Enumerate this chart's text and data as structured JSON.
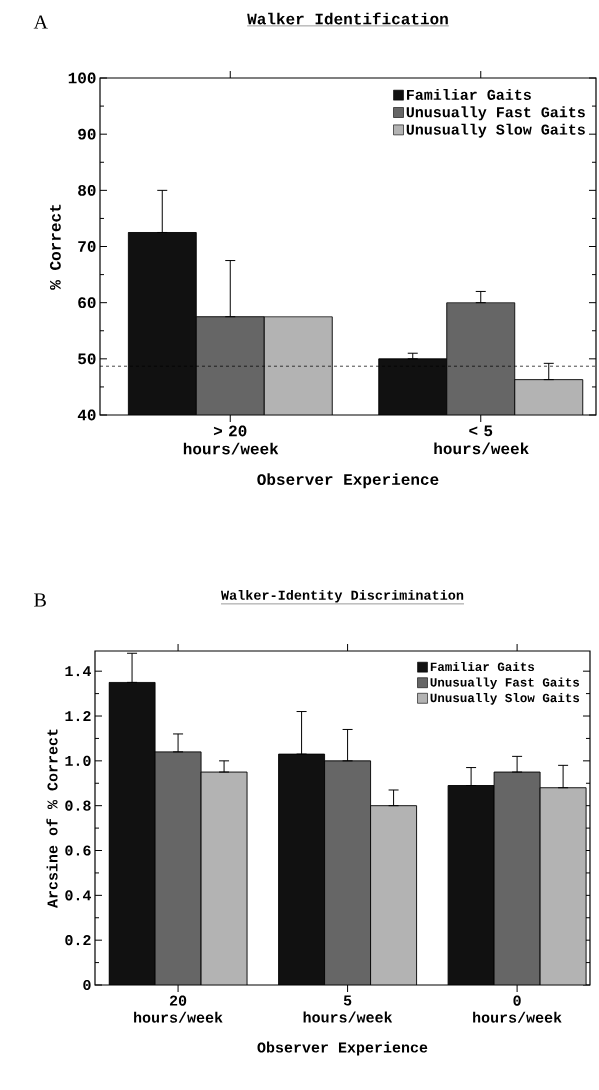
{
  "chart_data": [
    {
      "type": "bar",
      "title": "Walker Identification",
      "xlabel": "Observer Experience",
      "ylabel": "% Correct",
      "categories": [
        "> 20 hours/week",
        "< 5 hours/week"
      ],
      "series": [
        {
          "name": "Familiar Gaits",
          "color": "#111111",
          "values": [
            72.5,
            50
          ],
          "errors": [
            [
              72.5,
              80
            ],
            [
              50,
              51
            ]
          ]
        },
        {
          "name": "Unusually Fast Gaits",
          "color": "#666666",
          "values": [
            57.5,
            60
          ],
          "errors": [
            [
              57.5,
              67.5
            ],
            [
              60,
              62
            ]
          ]
        },
        {
          "name": "Unusually Slow Gaits",
          "color": "#b3b3b3",
          "values": [
            57.5,
            46.3
          ],
          "errors": [
            null,
            [
              46.3,
              49.2
            ]
          ]
        }
      ],
      "ylim": [
        40,
        100
      ],
      "yticks": [
        40,
        50,
        60,
        70,
        80,
        90,
        100
      ],
      "legend": "top right",
      "ref_lines": [
        {
          "axis": "y",
          "value": 48.7,
          "line_style": "dashed"
        }
      ],
      "annotations": [
        "A"
      ]
    },
    {
      "type": "bar",
      "title": "Walker-Identity Discrimination",
      "xlabel": "Observer Experience",
      "ylabel": "Arcsine of % Correct",
      "categories": [
        "20 hours/week",
        "5 hours/week",
        "0 hours/week"
      ],
      "series": [
        {
          "name": "Familiar Gaits",
          "color": "#111111",
          "values": [
            1.35,
            1.03,
            0.89
          ],
          "errors": [
            [
              1.35,
              1.48
            ],
            [
              1.03,
              1.22
            ],
            [
              0.89,
              0.97
            ]
          ]
        },
        {
          "name": "Unusually Fast Gaits",
          "color": "#666666",
          "values": [
            1.04,
            1.0,
            0.95
          ],
          "errors": [
            [
              1.04,
              1.12
            ],
            [
              1.0,
              1.14
            ],
            [
              0.95,
              1.02
            ]
          ]
        },
        {
          "name": "Unusually Slow Gaits",
          "color": "#b3b3b3",
          "values": [
            0.95,
            0.8,
            0.88
          ],
          "errors": [
            [
              0.95,
              1.0
            ],
            [
              0.8,
              0.87
            ],
            [
              0.88,
              0.98
            ]
          ]
        }
      ],
      "ylim": [
        0,
        1.49
      ],
      "yticks": [
        0,
        {
          "value": 0.2,
          "label": "0.2"
        },
        {
          "value": 0.4,
          "label": "0.4"
        },
        {
          "value": 0.6,
          "label": "0.6"
        },
        {
          "value": 0.8,
          "label": "0.8"
        },
        {
          "value": 1.0,
          "label": "1.0"
        },
        {
          "value": 1.2,
          "label": "1.2"
        },
        {
          "value": 1.4,
          "label": "1.4"
        }
      ],
      "legend": "top right",
      "annotations": [
        "B"
      ]
    }
  ]
}
